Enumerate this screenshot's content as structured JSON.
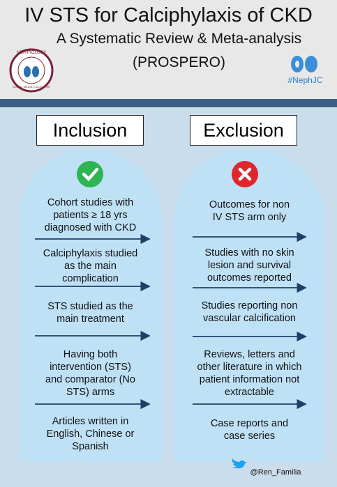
{
  "header": {
    "title": "IV STS for Calciphylaxis of CKD",
    "subtitle": "A Systematic Review & Meta-analysis",
    "note": "(PROSPERO)",
    "logo_name": "NEPHROLOGY",
    "logo_tagline": "SOCIAL MEDIA COLLECTIVE",
    "hashtag": "#NephJC"
  },
  "columns": [
    {
      "heading": "Inclusion",
      "items": [
        [
          "Cohort studies with",
          "patients ≥ 18 yrs",
          "diagnosed with CKD"
        ],
        [
          "Calciphylaxis studied",
          "as the main",
          "complication"
        ],
        [
          "STS studied as the",
          "main treatment"
        ],
        [
          "Having both",
          "intervention (STS)",
          "and comparator (No",
          "STS) arms"
        ],
        [
          "Articles written in",
          "English, Chinese or",
          "Spanish"
        ]
      ]
    },
    {
      "heading": "Exclusion",
      "items": [
        [
          "Outcomes for non",
          "IV STS arm only"
        ],
        [
          "Studies with no skin",
          "lesion and survival",
          "outcomes reported"
        ],
        [
          "Studies reporting non",
          "vascular calcification"
        ],
        [
          "Reviews, letters and",
          "other literature in which",
          "patient information not",
          "extractable"
        ],
        [
          "Case reports and",
          "case series"
        ]
      ]
    }
  ],
  "footer": {
    "handle": "@Ren_Familia"
  }
}
